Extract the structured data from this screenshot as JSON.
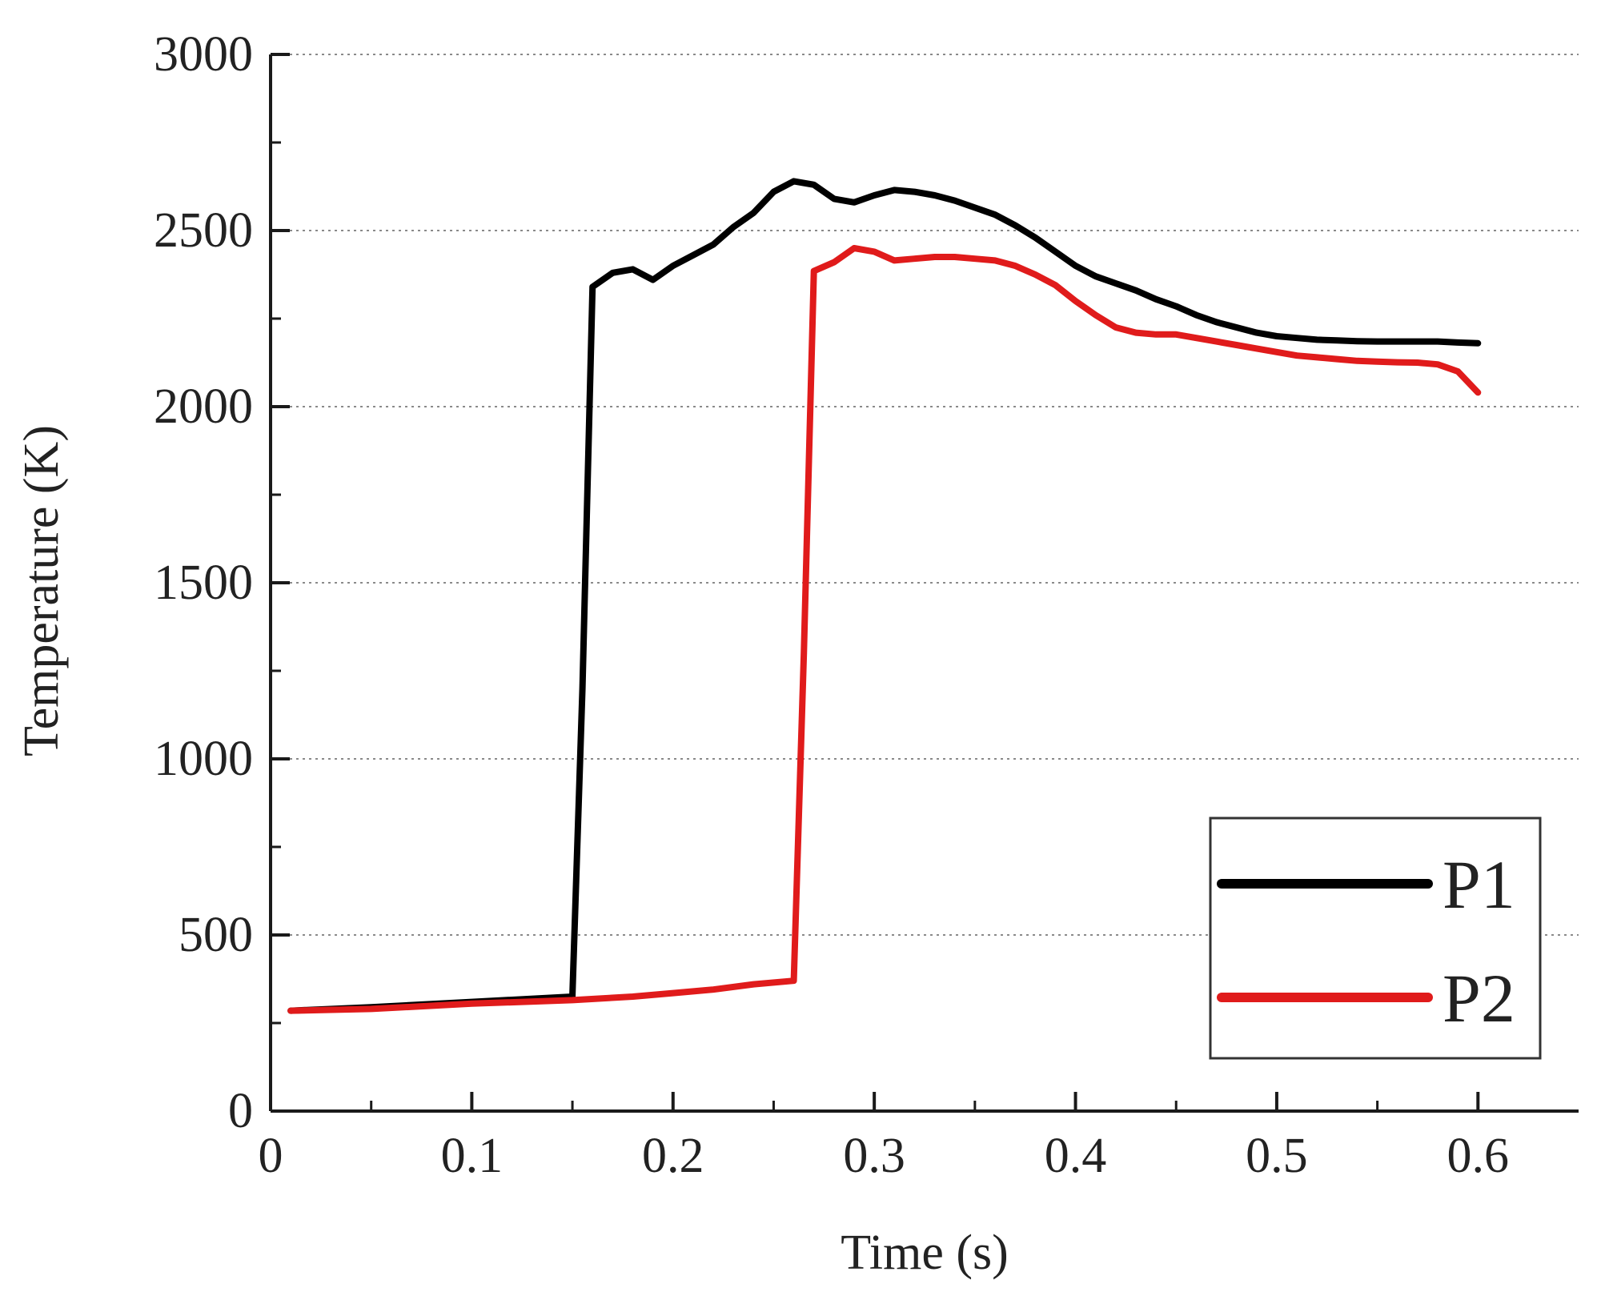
{
  "chart_data": {
    "type": "line",
    "xlabel": "Time (s)",
    "ylabel": "Temperature (K)",
    "xlim": [
      0,
      0.65
    ],
    "ylim": [
      0,
      3000
    ],
    "x_ticks": [
      0,
      0.1,
      0.2,
      0.3,
      0.4,
      0.5,
      0.6
    ],
    "x_tick_labels": [
      "0",
      "0.1",
      "0.2",
      "0.3",
      "0.4",
      "0.5",
      "0.6"
    ],
    "y_ticks": [
      0,
      500,
      1000,
      1500,
      2000,
      2500,
      3000
    ],
    "y_tick_labels": [
      "0",
      "500",
      "1000",
      "1500",
      "2000",
      "2500",
      "3000"
    ],
    "grid": "horizontal dotted",
    "legend_position": "bottom-right",
    "series": [
      {
        "name": "P1",
        "color": "#000000",
        "x": [
          0.01,
          0.05,
          0.1,
          0.15,
          0.15,
          0.155,
          0.16,
          0.17,
          0.18,
          0.19,
          0.2,
          0.21,
          0.22,
          0.23,
          0.24,
          0.25,
          0.26,
          0.27,
          0.28,
          0.29,
          0.3,
          0.31,
          0.32,
          0.33,
          0.34,
          0.35,
          0.36,
          0.37,
          0.38,
          0.39,
          0.4,
          0.41,
          0.42,
          0.43,
          0.44,
          0.45,
          0.46,
          0.47,
          0.48,
          0.49,
          0.5,
          0.51,
          0.52,
          0.53,
          0.54,
          0.55,
          0.56,
          0.57,
          0.58,
          0.59,
          0.6
        ],
        "y": [
          285,
          295,
          310,
          325,
          330,
          1200,
          2340,
          2380,
          2390,
          2360,
          2400,
          2430,
          2460,
          2510,
          2550,
          2610,
          2640,
          2630,
          2590,
          2580,
          2600,
          2615,
          2610,
          2600,
          2585,
          2565,
          2545,
          2515,
          2480,
          2440,
          2400,
          2370,
          2350,
          2330,
          2305,
          2285,
          2260,
          2240,
          2225,
          2210,
          2200,
          2195,
          2190,
          2188,
          2186,
          2185,
          2185,
          2185,
          2185,
          2182,
          2180
        ]
      },
      {
        "name": "P2",
        "color": "#e01b1b",
        "x": [
          0.01,
          0.05,
          0.1,
          0.15,
          0.18,
          0.2,
          0.22,
          0.24,
          0.26,
          0.265,
          0.27,
          0.28,
          0.29,
          0.3,
          0.31,
          0.32,
          0.33,
          0.34,
          0.35,
          0.36,
          0.37,
          0.38,
          0.39,
          0.4,
          0.41,
          0.42,
          0.43,
          0.44,
          0.45,
          0.46,
          0.47,
          0.48,
          0.49,
          0.5,
          0.51,
          0.52,
          0.53,
          0.54,
          0.55,
          0.56,
          0.57,
          0.58,
          0.59,
          0.6
        ],
        "y": [
          285,
          290,
          305,
          315,
          325,
          335,
          345,
          360,
          370,
          1300,
          2385,
          2410,
          2450,
          2440,
          2415,
          2420,
          2425,
          2425,
          2420,
          2415,
          2400,
          2375,
          2345,
          2300,
          2260,
          2225,
          2210,
          2205,
          2205,
          2195,
          2185,
          2175,
          2165,
          2155,
          2145,
          2140,
          2135,
          2130,
          2128,
          2126,
          2125,
          2120,
          2100,
          2040
        ]
      }
    ]
  }
}
